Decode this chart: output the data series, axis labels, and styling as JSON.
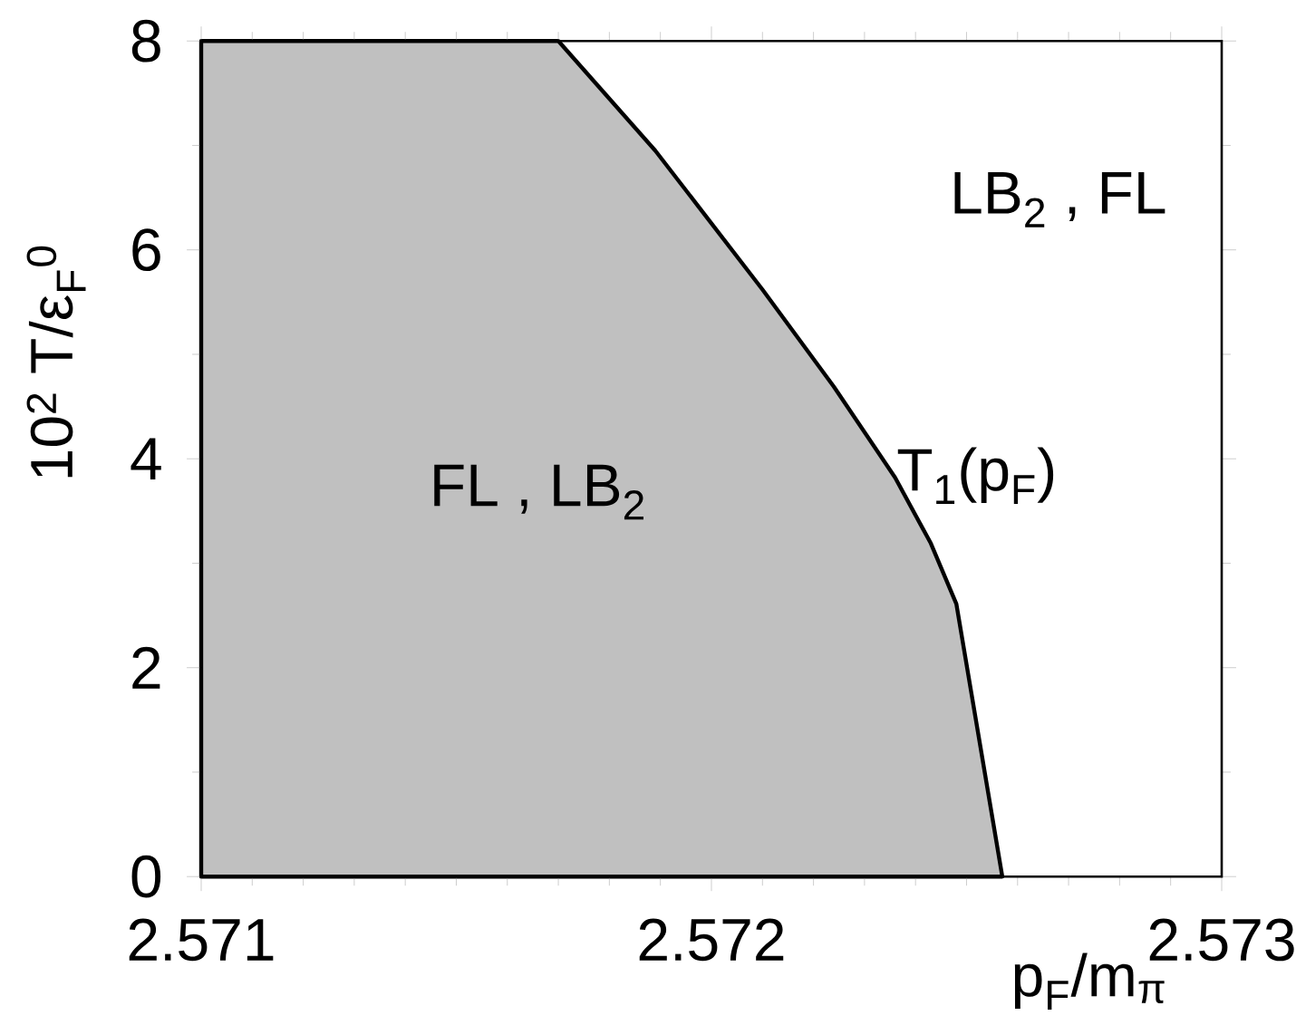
{
  "chart_data": {
    "type": "area",
    "xlabel": "p$_{F}$/m$_{π}$",
    "ylabel": "10$^{2}$ T/ε$_{F}$$^{0}$",
    "xlim": [
      2.571,
      2.573
    ],
    "ylim": [
      0,
      8
    ],
    "xticks": [
      2.571,
      2.572,
      2.573
    ],
    "yticks": [
      0,
      2,
      4,
      6,
      8
    ],
    "grid": false,
    "series": [
      {
        "color": "#c0c0c0",
        "x": [
          2.571,
          2.5717,
          2.57189,
          2.5721,
          2.57224,
          2.57236,
          2.57243,
          2.57248,
          2.57251,
          2.57254,
          2.57257,
          2.571
        ],
        "values": [
          8,
          8,
          6.95,
          5.62,
          4.69,
          3.82,
          3.19,
          2.61,
          1.74,
          0.87,
          0,
          0
        ]
      }
    ],
    "annotations": [
      "FL , LB$_{2}$",
      "LB$_{2}$ , FL",
      "T$_{1}$(p$_{F}$)"
    ]
  }
}
